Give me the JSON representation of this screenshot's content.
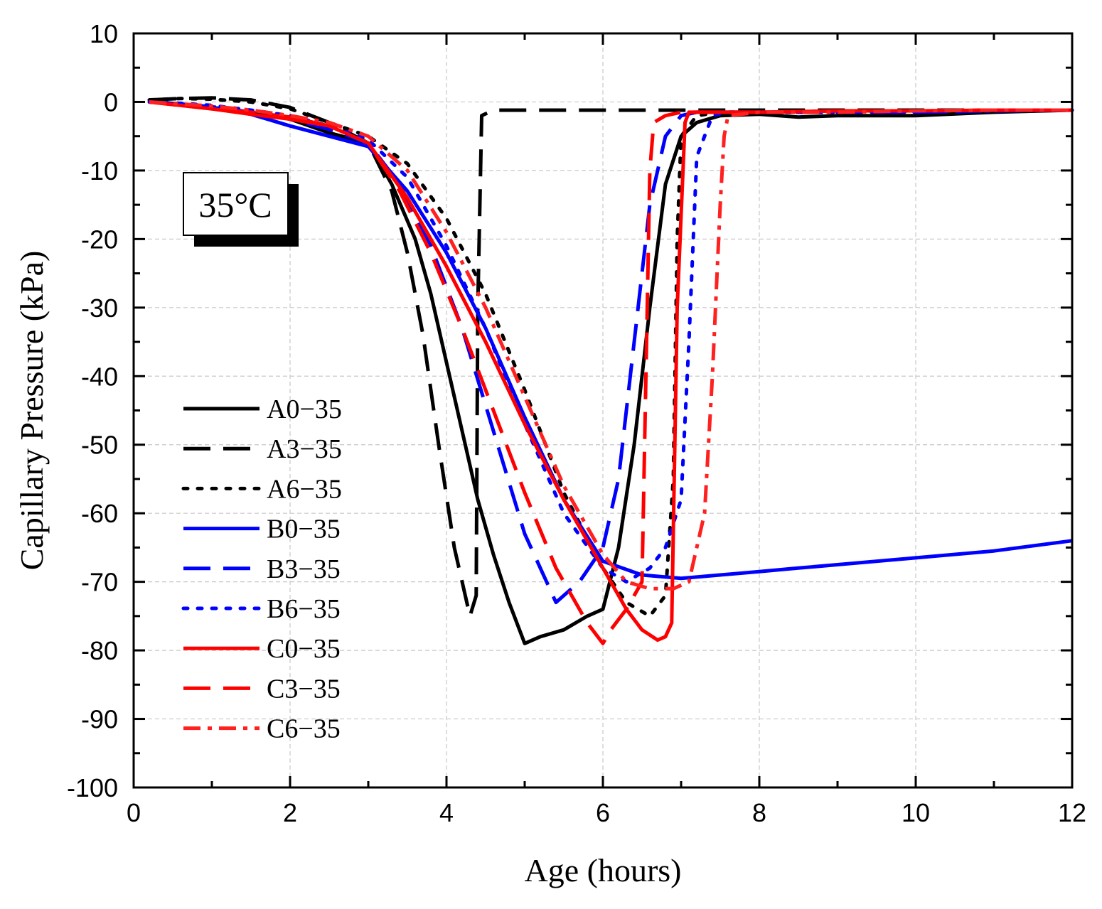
{
  "chart_data": {
    "type": "line",
    "title": "",
    "xlabel": "Age (hours)",
    "ylabel": "Capillary Pressure (kPa)",
    "xlim": [
      0,
      12
    ],
    "ylim": [
      -100,
      10
    ],
    "xticks": [
      0,
      2,
      4,
      6,
      8,
      10,
      12
    ],
    "yticks": [
      10,
      0,
      -10,
      -20,
      -30,
      -40,
      -50,
      -60,
      -70,
      -80,
      -90,
      -100
    ],
    "grid": true,
    "legend_position": "left",
    "annotation": "35°C",
    "series": [
      {
        "name": "A0−35",
        "color": "#000000",
        "style": "solid",
        "x": [
          0.2,
          0.6,
          1.0,
          1.5,
          2.0,
          2.5,
          3.0,
          3.3,
          3.6,
          3.8,
          4.0,
          4.2,
          4.4,
          4.6,
          4.8,
          5.0,
          5.2,
          5.5,
          5.8,
          6.0,
          6.2,
          6.4,
          6.6,
          6.8,
          7.0,
          7.2,
          7.5,
          8.0,
          8.5,
          9.0,
          10.0,
          11.0,
          12.0
        ],
        "y": [
          0,
          -0.3,
          -0.8,
          -1.5,
          -2.5,
          -4.5,
          -6,
          -12,
          -20,
          -28,
          -38,
          -48,
          -58,
          -66,
          -73,
          -79,
          -78,
          -77,
          -75,
          -74,
          -65,
          -50,
          -30,
          -12,
          -5,
          -3,
          -2,
          -1.8,
          -2.2,
          -2,
          -2,
          -1.5,
          -1.2
        ]
      },
      {
        "name": "A3−35",
        "color": "#000000",
        "style": "dashed",
        "x": [
          0.2,
          0.6,
          1.0,
          1.5,
          2.0,
          2.5,
          3.0,
          3.3,
          3.5,
          3.7,
          3.9,
          4.1,
          4.3,
          4.38,
          4.4,
          4.45,
          4.6,
          5.0,
          6.0,
          7.0,
          8.0,
          9.0,
          10.0,
          11.0,
          12.0
        ],
        "y": [
          0.3,
          0.5,
          0.6,
          0.3,
          -0.8,
          -3,
          -6,
          -13,
          -22,
          -34,
          -50,
          -65,
          -75,
          -72,
          -30,
          -2,
          -1.2,
          -1.2,
          -1.2,
          -1.2,
          -1.2,
          -1.2,
          -1.2,
          -1.2,
          -1.2
        ]
      },
      {
        "name": "A6−35",
        "color": "#000000",
        "style": "dotted",
        "x": [
          0.2,
          0.6,
          1.0,
          1.5,
          2.0,
          2.5,
          3.0,
          3.5,
          4.0,
          4.5,
          5.0,
          5.5,
          6.0,
          6.3,
          6.6,
          6.8,
          6.9,
          6.95,
          7.0,
          7.2,
          7.5,
          8.0,
          9.0,
          10.0,
          11.0,
          12.0
        ],
        "y": [
          0.3,
          0.5,
          0.4,
          0,
          -1,
          -3,
          -5,
          -9,
          -17,
          -28,
          -42,
          -57,
          -68,
          -73,
          -75,
          -72,
          -55,
          -20,
          -5,
          -2,
          -1.5,
          -1.5,
          -1.5,
          -1.5,
          -1.3,
          -1.2
        ]
      },
      {
        "name": "B0−35",
        "color": "#0000ff",
        "style": "solid",
        "x": [
          0.2,
          0.6,
          1.0,
          1.5,
          2.0,
          2.5,
          3.0,
          3.5,
          4.0,
          4.5,
          5.0,
          5.5,
          6.0,
          6.5,
          7.0,
          7.5,
          8.0,
          8.5,
          9.0,
          10.0,
          11.0,
          12.0
        ],
        "y": [
          0,
          -0.3,
          -0.8,
          -1.8,
          -3.5,
          -5,
          -6.5,
          -13,
          -22,
          -33,
          -46,
          -58,
          -67,
          -69,
          -69.5,
          -69,
          -68.5,
          -68,
          -67.5,
          -66.5,
          -65.5,
          -64
        ]
      },
      {
        "name": "B3−35",
        "color": "#0000ff",
        "style": "dashed",
        "x": [
          0.2,
          0.6,
          1.0,
          1.5,
          2.0,
          2.5,
          3.0,
          3.4,
          3.8,
          4.2,
          4.6,
          5.0,
          5.4,
          5.7,
          6.0,
          6.2,
          6.4,
          6.6,
          6.8,
          7.0,
          7.2,
          7.5,
          8.0,
          9.0,
          10.0,
          11.0,
          12.0
        ],
        "y": [
          0,
          -0.3,
          -0.7,
          -1.5,
          -2.5,
          -4,
          -6,
          -12,
          -21,
          -33,
          -48,
          -63,
          -73,
          -70,
          -65,
          -55,
          -35,
          -15,
          -5,
          -2,
          -1.5,
          -1.5,
          -1.5,
          -1.5,
          -1.5,
          -1.3,
          -1.2
        ]
      },
      {
        "name": "B6−35",
        "color": "#0000ff",
        "style": "dotted",
        "x": [
          0.2,
          0.6,
          1.0,
          1.5,
          2.0,
          2.5,
          3.0,
          3.5,
          4.0,
          4.5,
          5.0,
          5.5,
          6.0,
          6.3,
          6.6,
          6.8,
          7.0,
          7.1,
          7.2,
          7.4,
          7.6,
          8.0,
          9.0,
          10.0,
          11.0,
          12.0
        ],
        "y": [
          0,
          -0.2,
          -0.5,
          -1.2,
          -2,
          -3.5,
          -5.5,
          -11,
          -21,
          -33,
          -47,
          -60,
          -68,
          -70,
          -68,
          -65,
          -58,
          -35,
          -8,
          -2,
          -1.5,
          -1.5,
          -1.5,
          -1.5,
          -1.3,
          -1.2
        ]
      },
      {
        "name": "C0−35",
        "color": "#ff0000",
        "style": "solid",
        "x": [
          0.2,
          0.6,
          1.0,
          1.5,
          2.0,
          2.5,
          3.0,
          3.5,
          4.0,
          4.5,
          5.0,
          5.5,
          6.0,
          6.3,
          6.5,
          6.7,
          6.8,
          6.88,
          6.95,
          7.05,
          7.1,
          7.5,
          8.0,
          9.0,
          10.0,
          11.0,
          12.0
        ],
        "y": [
          0,
          -0.5,
          -1,
          -1.8,
          -2.5,
          -3.5,
          -6,
          -14,
          -24,
          -35,
          -47,
          -58,
          -68,
          -74,
          -77,
          -78.5,
          -78,
          -76,
          -30,
          -3,
          -1.5,
          -1.5,
          -1.5,
          -1.3,
          -1.3,
          -1.2,
          -1.2
        ]
      },
      {
        "name": "C3−35",
        "color": "#ff0000",
        "style": "dashed",
        "x": [
          0.2,
          0.6,
          1.0,
          1.5,
          2.0,
          2.5,
          3.0,
          3.4,
          3.8,
          4.2,
          4.6,
          5.0,
          5.4,
          5.8,
          6.0,
          6.1,
          6.3,
          6.5,
          6.55,
          6.6,
          6.65,
          6.8,
          7.0,
          7.5,
          8.0,
          9.0,
          10.0,
          11.0,
          12.0
        ],
        "y": [
          0,
          -0.5,
          -1,
          -1.5,
          -2.2,
          -3.5,
          -6,
          -13,
          -22,
          -33,
          -45,
          -57,
          -68,
          -76,
          -79,
          -77,
          -74,
          -70,
          -40,
          -10,
          -3,
          -2,
          -1.5,
          -1.5,
          -1.5,
          -1.3,
          -1.3,
          -1.2,
          -1.2
        ]
      },
      {
        "name": "C6−35",
        "color": "#ff2020",
        "style": "dashdot",
        "x": [
          0.2,
          0.6,
          1.0,
          1.5,
          2.0,
          2.5,
          3.0,
          3.5,
          4.0,
          4.5,
          5.0,
          5.5,
          6.0,
          6.3,
          6.6,
          6.9,
          7.1,
          7.3,
          7.4,
          7.5,
          7.55,
          7.6,
          8.0,
          9.0,
          10.0,
          11.0,
          12.0
        ],
        "y": [
          0,
          -0.3,
          -0.6,
          -1.2,
          -2,
          -3,
          -5,
          -10,
          -19,
          -30,
          -43,
          -56,
          -66,
          -70,
          -71,
          -71,
          -70,
          -60,
          -40,
          -15,
          -5,
          -2,
          -1.5,
          -1.5,
          -1.3,
          -1.2,
          -1.2
        ]
      }
    ]
  }
}
